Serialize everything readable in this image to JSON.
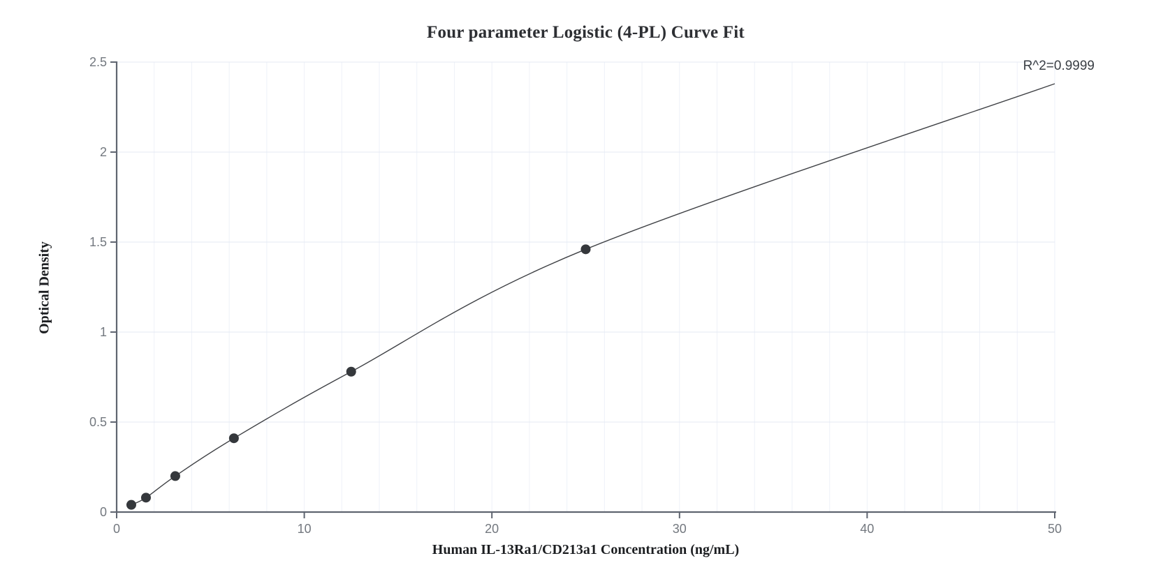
{
  "page": {
    "background_color": "#ffffff"
  },
  "chart_data": {
    "type": "scatter",
    "title": "Four parameter Logistic (4-PL) Curve Fit",
    "xlabel": "Human IL-13Ra1/CD213a1 Concentration (ng/mL)",
    "ylabel": "Optical Density",
    "annotation": "R^2=0.9999",
    "xlim": [
      0,
      50
    ],
    "ylim": [
      0,
      2.5
    ],
    "x_ticks": [
      0,
      10,
      20,
      30,
      40,
      50
    ],
    "y_ticks": [
      0,
      0.5,
      1,
      1.5,
      2,
      2.5
    ],
    "x_grid_step": 2,
    "y_grid_step": 0.5,
    "grid": "on",
    "legend_position": "none",
    "fit": {
      "model": "4-PL",
      "r_squared": 0.9999
    },
    "series": [
      {
        "name": "standard-points",
        "type": "scatter",
        "points": [
          {
            "x": 0.781,
            "y": 0.04
          },
          {
            "x": 1.563,
            "y": 0.08
          },
          {
            "x": 3.125,
            "y": 0.2
          },
          {
            "x": 6.25,
            "y": 0.41
          },
          {
            "x": 12.5,
            "y": 0.78
          },
          {
            "x": 25,
            "y": 1.46
          }
        ]
      },
      {
        "name": "fitted-curve",
        "type": "line",
        "points": [
          {
            "x": 0.781,
            "y": 0.04
          },
          {
            "x": 1.563,
            "y": 0.08
          },
          {
            "x": 3.125,
            "y": 0.2
          },
          {
            "x": 6.25,
            "y": 0.41
          },
          {
            "x": 12.5,
            "y": 0.78
          },
          {
            "x": 25,
            "y": 1.46
          },
          {
            "x": 50,
            "y": 2.38
          }
        ]
      }
    ],
    "colors": {
      "point": "#35383c",
      "curve": "#3f4145",
      "axis": "#5f6570",
      "tick_label": "#73787f",
      "grid_horizontal": "#e4e9f3",
      "grid_vertical": "#eef1f8",
      "title_text": "#2d2f33",
      "annotation_text": "#3a3f45"
    }
  }
}
